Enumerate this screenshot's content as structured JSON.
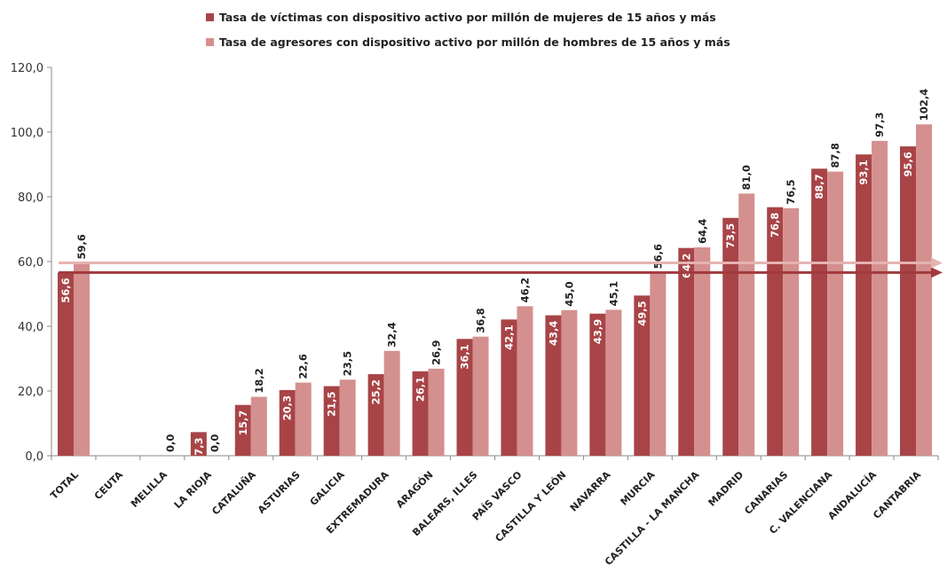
{
  "chart_data": {
    "type": "bar",
    "categories": [
      "TOTAL",
      "CEUTA",
      "MELILLA",
      "LA RIOJA",
      "CATALUÑA",
      "ASTURIAS",
      "GALICIA",
      "EXTREMADURA",
      "ARAGÓN",
      "BALEARS, ILLES",
      "PAÍS VASCO",
      "CASTILLA Y LEÓN",
      "NAVARRA",
      "MURCIA",
      "CASTILLA - LA MANCHA",
      "MADRID",
      "CANARIAS",
      "C. VALENCIANA",
      "ANDALUCÍA",
      "CANTABRIA"
    ],
    "series": [
      {
        "name": "Tasa de víctimas con dispositivo activo por millón de mujeres de 15 años y más",
        "color": "#a84447",
        "values": [
          56.6,
          null,
          null,
          7.3,
          15.7,
          20.3,
          21.5,
          25.2,
          26.1,
          36.1,
          42.1,
          43.4,
          43.9,
          49.5,
          64.2,
          73.5,
          76.8,
          88.7,
          93.1,
          95.6
        ],
        "labels": [
          "56,6",
          "",
          "",
          "7,3",
          "15,7",
          "20,3",
          "21,5",
          "25,2",
          "26,1",
          "36,1",
          "42,1",
          "43,4",
          "43,9",
          "49,5",
          "64,2",
          "73,5",
          "76,8",
          "88,7",
          "93,1",
          "95,6"
        ]
      },
      {
        "name": "Tasa de agresores con dispositivo activo por millón de hombres de 15 años y más",
        "color": "#d4908f",
        "values": [
          59.6,
          null,
          0.0,
          0.0,
          18.2,
          22.6,
          23.5,
          32.4,
          26.9,
          36.8,
          46.2,
          45.0,
          45.1,
          56.6,
          64.4,
          81.0,
          76.5,
          87.8,
          97.3,
          102.4
        ],
        "labels": [
          "59,6",
          "",
          "0,0",
          "0,0",
          "18,2",
          "22,6",
          "23,5",
          "32,4",
          "26,9",
          "36,8",
          "46,2",
          "45,0",
          "45,1",
          "56,6",
          "64,4",
          "81,0",
          "76,5",
          "87,8",
          "97,3",
          "102,4"
        ]
      }
    ],
    "ylim": [
      0,
      120
    ],
    "yticks": [
      0,
      20,
      40,
      60,
      80,
      100,
      120
    ],
    "ytick_labels": [
      "0,0",
      "20,0",
      "40,0",
      "60,0",
      "80,0",
      "100,0",
      "120,0"
    ],
    "reference_lines": [
      {
        "series": 0,
        "value": 56.6,
        "color": "#a23a3d"
      },
      {
        "series": 1,
        "value": 59.6,
        "color": "#e5b3b1"
      }
    ],
    "legend_position": "top",
    "grid": false,
    "xlabel": "",
    "ylabel": "",
    "title": ""
  }
}
